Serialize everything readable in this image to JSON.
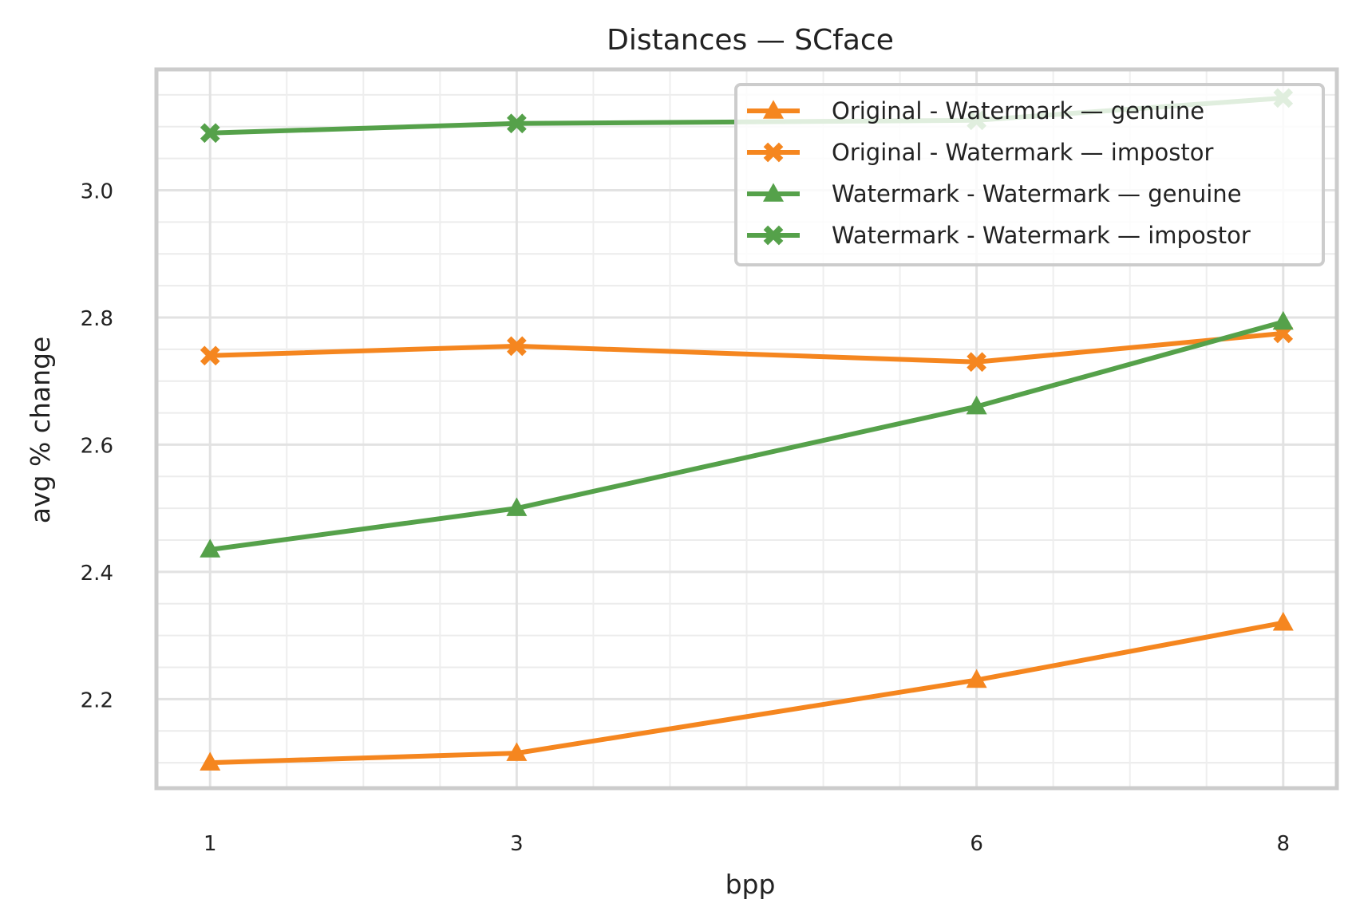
{
  "chart_data": {
    "type": "line",
    "title": "Distances — SCface",
    "xlabel": "bpp",
    "ylabel": "avg % change",
    "x": [
      1,
      3,
      6,
      8
    ],
    "x_ticks": [
      "1",
      "3",
      "6",
      "8"
    ],
    "xlim": [
      0.65,
      8.35
    ],
    "ylim": [
      2.06,
      3.19
    ],
    "y_ticks": [
      "2.2",
      "2.4",
      "2.6",
      "2.8",
      "3.0"
    ],
    "grid": true,
    "legend_position": "top-right",
    "series": [
      {
        "name": "Original - Watermark — genuine",
        "color": "#f5861f",
        "marker": "triangle",
        "values": [
          2.1,
          2.115,
          2.23,
          2.32
        ]
      },
      {
        "name": "Original - Watermark — impostor",
        "color": "#f5861f",
        "marker": "x",
        "values": [
          2.74,
          2.755,
          2.73,
          2.775
        ]
      },
      {
        "name": "Watermark - Watermark — genuine",
        "color": "#55a14a",
        "marker": "triangle",
        "values": [
          2.435,
          2.5,
          2.66,
          2.793
        ]
      },
      {
        "name": "Watermark - Watermark — impostor",
        "color": "#55a14a",
        "marker": "x",
        "values": [
          3.09,
          3.105,
          3.11,
          3.145
        ]
      }
    ]
  }
}
